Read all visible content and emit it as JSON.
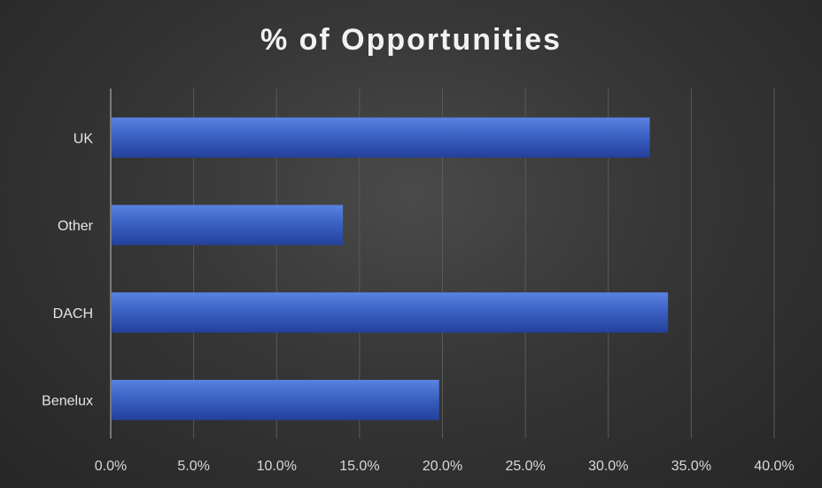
{
  "chart_data": {
    "type": "bar",
    "orientation": "horizontal",
    "title": "% of Opportunities",
    "categories": [
      "UK",
      "Other",
      "DACH",
      "Benelux"
    ],
    "values": [
      32.5,
      14.0,
      33.6,
      19.8
    ],
    "value_format": "percent",
    "xlim": [
      0,
      40
    ],
    "x_ticks": [
      "0.0%",
      "5.0%",
      "10.0%",
      "15.0%",
      "20.0%",
      "25.0%",
      "30.0%",
      "35.0%",
      "40.0%"
    ],
    "grid": "vertical",
    "legend": "none",
    "bar_color": "#3b62c4"
  }
}
